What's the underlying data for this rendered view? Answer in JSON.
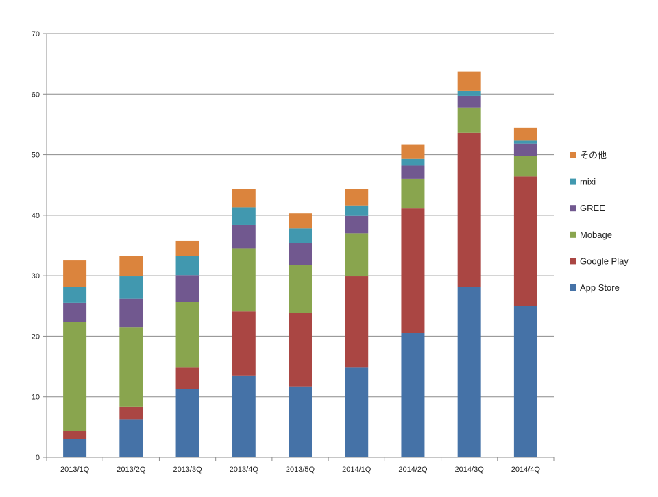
{
  "chart_data": {
    "type": "bar",
    "stacked": true,
    "title": "",
    "xlabel": "",
    "ylabel": "",
    "ylim": [
      0,
      70
    ],
    "yticks": [
      0,
      10,
      20,
      30,
      40,
      50,
      60,
      70
    ],
    "grid": true,
    "legend_position": "right",
    "categories": [
      "2013/1Q",
      "2013/2Q",
      "2013/3Q",
      "2013/4Q",
      "2013/5Q",
      "2014/1Q",
      "2014/2Q",
      "2014/3Q",
      "2014/4Q"
    ],
    "series": [
      {
        "name": "App Store",
        "color": "#4572A7",
        "values": [
          3.0,
          6.3,
          11.3,
          13.5,
          11.7,
          14.8,
          20.5,
          28.1,
          25.0
        ]
      },
      {
        "name": "Google Play",
        "color": "#AA4643",
        "values": [
          1.4,
          2.1,
          3.5,
          10.6,
          12.1,
          15.1,
          20.6,
          25.5,
          21.4
        ]
      },
      {
        "name": "Mobage",
        "color": "#89A54E",
        "values": [
          18.0,
          13.1,
          10.9,
          10.4,
          8.0,
          7.1,
          4.9,
          4.2,
          3.4
        ]
      },
      {
        "name": "GREE",
        "color": "#71588F",
        "values": [
          3.1,
          4.7,
          4.4,
          3.9,
          3.6,
          2.9,
          2.2,
          1.9,
          2.0
        ]
      },
      {
        "name": "mixi",
        "color": "#4198AF",
        "values": [
          2.7,
          3.7,
          3.2,
          2.9,
          2.4,
          1.7,
          1.1,
          0.8,
          0.6
        ]
      },
      {
        "name": "その他",
        "color": "#DB843D",
        "values": [
          4.3,
          3.4,
          2.5,
          3.0,
          2.5,
          2.8,
          2.4,
          3.2,
          2.1
        ]
      }
    ]
  }
}
